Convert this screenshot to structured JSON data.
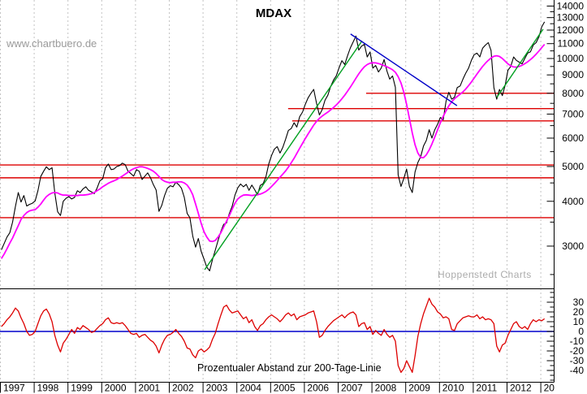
{
  "title": "MDAX",
  "watermark": "www.chartbuero.de",
  "branding": "Hoppenstedt Charts",
  "colors": {
    "price": "#000000",
    "moving_average": "#ff00ff",
    "indicator": "#dd0000",
    "support": "#dd0000",
    "trend_green": "#00a020",
    "trend_blue": "#0000c8",
    "zero_line": "#0000cc",
    "grid": "#c3c3c3",
    "axis": "#000000"
  },
  "chart_data": {
    "type": "line",
    "title": "MDAX",
    "x_axis": {
      "start_year": 1997,
      "tick_labels": [
        "1997",
        "1998",
        "1999",
        "2000",
        "2001",
        "2002",
        "2003",
        "2004",
        "2005",
        "2006",
        "2007",
        "2008",
        "2009",
        "2010",
        "2011",
        "2012",
        "20"
      ],
      "range": [
        1997.0,
        2013.4
      ],
      "grid": "dashed-vertical-per-year"
    },
    "panels": [
      {
        "name": "price-panel",
        "yscale": "log",
        "ylim": [
          2450,
          14550
        ],
        "tick_values": [
          14000,
          13000,
          12000,
          11000,
          10000,
          9000,
          8000,
          7000,
          6000,
          5000,
          4000,
          3000
        ],
        "minor_tick_values": [
          13500,
          12500,
          11500,
          10500,
          9500,
          8500,
          7500,
          6500,
          5500,
          4500,
          3500,
          2500
        ],
        "series": [
          {
            "name": "MDAX",
            "color_key": "price",
            "x_start": 1997.04,
            "x_step": 0.08333,
            "values": [
              2930,
              3050,
              3180,
              3270,
              3500,
              3870,
              4230,
              3980,
              4150,
              3880,
              3920,
              3950,
              4010,
              4280,
              4690,
              4850,
              4990,
              4900,
              4960,
              4220,
              3740,
              3650,
              4000,
              4080,
              4120,
              4060,
              4100,
              4280,
              4230,
              4330,
              4390,
              4290,
              4250,
              4200,
              4350,
              4560,
              4620,
              4960,
              5080,
              4900,
              4920,
              5000,
              5030,
              5110,
              5060,
              4850,
              4780,
              4700,
              4900,
              4850,
              4600,
              4700,
              4800,
              4650,
              4450,
              4300,
              3750,
              3900,
              4150,
              4350,
              4420,
              4390,
              4520,
              4450,
              4350,
              4100,
              3700,
              3600,
              3200,
              2980,
              3150,
              2900,
              2760,
              2620,
              2560,
              2750,
              2920,
              3110,
              3300,
              3450,
              3480,
              3700,
              3870,
              4160,
              4360,
              4470,
              4390,
              4460,
              4290,
              4440,
              4310,
              4170,
              4430,
              4480,
              4680,
              5080,
              5370,
              5590,
              5680,
              5450,
              5650,
              5960,
              6300,
              6380,
              6620,
              6440,
              6880,
              7090,
              7450,
              7770,
              8000,
              8200,
              7500,
              6960,
              7200,
              7650,
              7900,
              8350,
              8700,
              8950,
              9420,
              9860,
              9620,
              10170,
              10700,
              11120,
              11550,
              10550,
              10830,
              10950,
              10100,
              10430,
              9400,
              9560,
              9170,
              9410,
              9930,
              9230,
              8760,
              8940,
              8310,
              4740,
              4400,
              4630,
              4920,
              4400,
              4230,
              4830,
              5130,
              5330,
              5700,
              5910,
              6330,
              6000,
              6330,
              6560,
              6850,
              6750,
              7600,
              8050,
              7700,
              7800,
              8300,
              8380,
              8760,
              9100,
              9400,
              9880,
              10250,
              10350,
              10100,
              10680,
              10900,
              11070,
              10530,
              8300,
              7700,
              8200,
              7880,
              8420,
              9270,
              9500,
              10100,
              9880,
              9770,
              9660,
              10000,
              10350,
              10440,
              10900,
              11070,
              11480,
              12250,
              12650
            ]
          },
          {
            "name": "200-Tage-Linie",
            "color_key": "moving_average",
            "x_start": 1997.04,
            "x_step": 0.08333,
            "values": [
              2770,
              2850,
              2950,
              3060,
              3160,
              3290,
              3420,
              3560,
              3650,
              3720,
              3760,
              3780,
              3790,
              3850,
              3930,
              4030,
              4120,
              4180,
              4220,
              4230,
              4220,
              4180,
              4160,
              4160,
              4150,
              4150,
              4150,
              4150,
              4160,
              4160,
              4170,
              4180,
              4200,
              4230,
              4280,
              4330,
              4390,
              4440,
              4490,
              4530,
              4560,
              4600,
              4650,
              4700,
              4760,
              4820,
              4880,
              4930,
              4960,
              4990,
              4990,
              4970,
              4940,
              4900,
              4850,
              4780,
              4690,
              4600,
              4550,
              4520,
              4510,
              4520,
              4520,
              4530,
              4530,
              4500,
              4440,
              4330,
              4170,
              3930,
              3700,
              3470,
              3290,
              3180,
              3100,
              3090,
              3110,
              3180,
              3270,
              3390,
              3520,
              3650,
              3800,
              3950,
              4060,
              4120,
              4160,
              4170,
              4160,
              4150,
              4160,
              4170,
              4190,
              4220,
              4260,
              4320,
              4400,
              4480,
              4570,
              4670,
              4760,
              4860,
              4980,
              5120,
              5270,
              5440,
              5620,
              5800,
              5980,
              6160,
              6340,
              6520,
              6680,
              6810,
              6910,
              7000,
              7090,
              7190,
              7300,
              7420,
              7560,
              7720,
              7900,
              8100,
              8320,
              8560,
              8810,
              9060,
              9290,
              9480,
              9620,
              9700,
              9730,
              9720,
              9680,
              9620,
              9550,
              9480,
              9400,
              9300,
              9150,
              8900,
              8550,
              8050,
              7450,
              6800,
              6200,
              5750,
              5450,
              5300,
              5290,
              5390,
              5560,
              5780,
              6040,
              6330,
              6620,
              6900,
              7150,
              7380,
              7570,
              7720,
              7840,
              7950,
              8070,
              8220,
              8400,
              8600,
              8820,
              9050,
              9280,
              9500,
              9700,
              9880,
              10030,
              10140,
              10180,
              10130,
              10000,
              9830,
              9660,
              9540,
              9470,
              9460,
              9500,
              9570,
              9670,
              9790,
              9930,
              10090,
              10280,
              10490,
              10720,
              10950
            ]
          }
        ],
        "support_lines": [
          {
            "value": 8000,
            "from_year": 2007.84,
            "to_year": 2013.4
          },
          {
            "value": 7250,
            "from_year": 2005.53,
            "to_year": 2013.4
          },
          {
            "value": 6700,
            "from_year": 2005.65,
            "to_year": 2013.4
          },
          {
            "value": 5050,
            "from_year": 1997.0,
            "to_year": 2013.4
          },
          {
            "value": 4650,
            "from_year": 1997.0,
            "to_year": 2013.4
          },
          {
            "value": 3600,
            "from_year": 1997.0,
            "to_year": 2013.4
          }
        ],
        "trend_lines": [
          {
            "color_key": "trend_green",
            "x1": 2003.06,
            "v1": 2578,
            "x2": 2007.72,
            "v2": 11200
          },
          {
            "color_key": "trend_green",
            "x1": 2011.71,
            "v1": 7790,
            "x2": 2013.08,
            "v2": 12070
          },
          {
            "color_key": "trend_blue",
            "x1": 2007.38,
            "v1": 11700,
            "x2": 2010.53,
            "v2": 7390
          }
        ]
      },
      {
        "name": "distance-panel",
        "label": "Prozentualer Abstand zur 200-Tage-Linie",
        "yscale": "linear",
        "ylim": [
          -51,
          42
        ],
        "tick_values": [
          30,
          20,
          10,
          0,
          -10,
          -20,
          -30,
          -40
        ],
        "minor_tick_values": [
          40,
          35,
          25,
          15,
          5,
          -5,
          -15,
          -25,
          -35,
          -45,
          -50
        ],
        "zero_line": {
          "value": 0,
          "color_key": "zero_line"
        },
        "series": [
          {
            "name": "Abstand %",
            "color_key": "indicator",
            "x_start": 1997.04,
            "x_step": 0.08333,
            "values": [
              5,
              8,
              12,
              15,
              19,
              24,
              21,
              14,
              8,
              0,
              -4,
              -3,
              0,
              8,
              16,
              21,
              23,
              18,
              10,
              -4,
              -14,
              -21,
              -12,
              -8,
              -3,
              2,
              -2,
              4,
              2,
              6,
              4,
              2,
              -1,
              0,
              3,
              6,
              8,
              12,
              14,
              9,
              8,
              9,
              8,
              9,
              6,
              2,
              -2,
              -3,
              -2,
              -6,
              -4,
              -3,
              -6,
              -9,
              -11,
              -15,
              -22,
              -14,
              -8,
              -4,
              -3,
              -1,
              2,
              -2,
              -5,
              -10,
              -17,
              -18,
              -24,
              -27,
              -20,
              -18,
              -21,
              -19,
              -16,
              -8,
              -2,
              8,
              17,
              25,
              27,
              22,
              19,
              20,
              21,
              17,
              13,
              15,
              9,
              12,
              5,
              1,
              6,
              8,
              12,
              15,
              17,
              15,
              13,
              10,
              13,
              17,
              19,
              16,
              18,
              12,
              15,
              16,
              17,
              19,
              20,
              21,
              10,
              -6,
              -4,
              1,
              5,
              8,
              11,
              13,
              15,
              17,
              14,
              17,
              19,
              20,
              17,
              5,
              8,
              9,
              2,
              5,
              -3,
              1,
              -2,
              -4,
              2,
              -3,
              -6,
              -4,
              -10,
              -35,
              -42,
              -38,
              -30,
              -36,
              -42,
              -25,
              -5,
              8,
              18,
              26,
              34,
              28,
              25,
              20,
              18,
              14,
              15,
              13,
              2,
              1,
              8,
              11,
              14,
              15,
              16,
              15,
              15,
              17,
              13,
              15,
              12,
              13,
              12,
              8,
              -15,
              -21,
              -14,
              -12,
              -4,
              2,
              8,
              10,
              5,
              3,
              5,
              2,
              8,
              12,
              10,
              12,
              11,
              13
            ]
          }
        ]
      }
    ]
  }
}
